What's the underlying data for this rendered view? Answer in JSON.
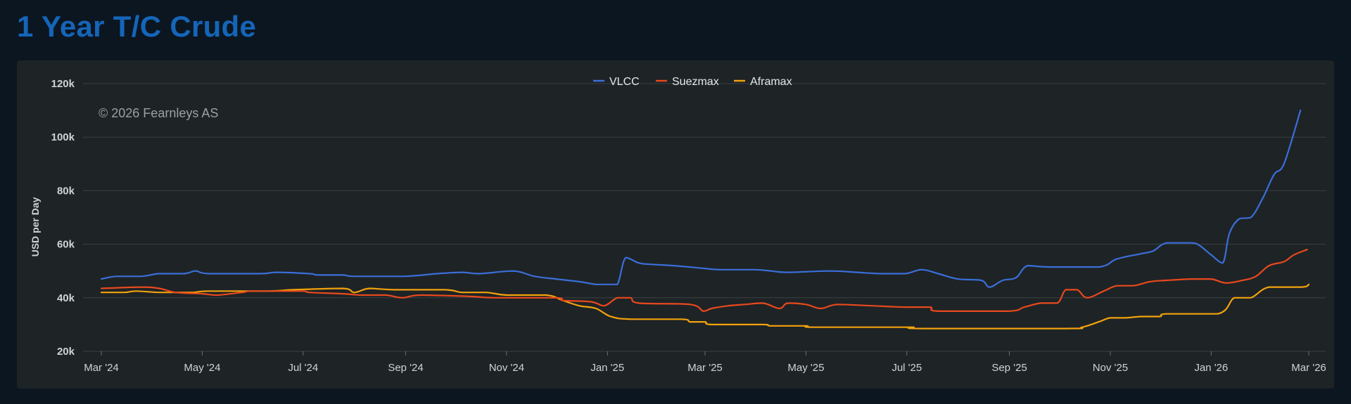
{
  "page": {
    "title": "1 Year T/C Crude"
  },
  "colors": {
    "VLCC": "#3a6fd8",
    "Suezmax": "#e8491d",
    "Aframax": "#f2a20c",
    "grid": "#3a3f43",
    "background": "#1e2326"
  },
  "chart_data": {
    "type": "line",
    "title": "",
    "xlabel": "",
    "ylabel": "USD per Day",
    "watermark": "© 2026 Fearnleys AS",
    "legend_position": "top-center",
    "grid": true,
    "ylim": [
      20000,
      120000
    ],
    "xlim": [
      "2024-03-01",
      "2026-03-01"
    ],
    "x_ticks": [
      {
        "date": "2024-03-01",
        "label": "Mar '24"
      },
      {
        "date": "2024-05-01",
        "label": "May '24"
      },
      {
        "date": "2024-07-01",
        "label": "Jul '24"
      },
      {
        "date": "2024-09-01",
        "label": "Sep '24"
      },
      {
        "date": "2024-11-01",
        "label": "Nov '24"
      },
      {
        "date": "2025-01-01",
        "label": "Jan '25"
      },
      {
        "date": "2025-03-01",
        "label": "Mar '25"
      },
      {
        "date": "2025-05-01",
        "label": "May '25"
      },
      {
        "date": "2025-07-01",
        "label": "Jul '25"
      },
      {
        "date": "2025-09-01",
        "label": "Sep '25"
      },
      {
        "date": "2025-11-01",
        "label": "Nov '25"
      },
      {
        "date": "2026-01-01",
        "label": "Jan '26"
      },
      {
        "date": "2026-03-01",
        "label": "Mar '26"
      }
    ],
    "y_ticks": [
      {
        "value": 20000,
        "label": "20k"
      },
      {
        "value": 40000,
        "label": "40k"
      },
      {
        "value": 60000,
        "label": "60k"
      },
      {
        "value": 80000,
        "label": "80k"
      },
      {
        "value": 100000,
        "label": "100k"
      },
      {
        "value": 120000,
        "label": "120k"
      }
    ],
    "series": [
      {
        "name": "VLCC",
        "points": [
          [
            "2024-03-01",
            47000
          ],
          [
            "2024-03-10",
            48000
          ],
          [
            "2024-03-25",
            48000
          ],
          [
            "2024-04-05",
            49000
          ],
          [
            "2024-04-20",
            49000
          ],
          [
            "2024-04-27",
            50000
          ],
          [
            "2024-05-05",
            49000
          ],
          [
            "2024-06-05",
            49000
          ],
          [
            "2024-06-15",
            49500
          ],
          [
            "2024-07-05",
            49000
          ],
          [
            "2024-07-10",
            48500
          ],
          [
            "2024-07-25",
            48500
          ],
          [
            "2024-08-01",
            48000
          ],
          [
            "2024-08-31",
            48000
          ],
          [
            "2024-09-20",
            49000
          ],
          [
            "2024-10-05",
            49500
          ],
          [
            "2024-10-15",
            49000
          ],
          [
            "2024-11-05",
            50000
          ],
          [
            "2024-11-18",
            48000
          ],
          [
            "2024-12-01",
            47000
          ],
          [
            "2024-12-15",
            46000
          ],
          [
            "2024-12-25",
            45000
          ],
          [
            "2025-01-01",
            45000
          ],
          [
            "2025-01-07",
            45000
          ],
          [
            "2025-01-12",
            55000
          ],
          [
            "2025-01-20",
            53000
          ],
          [
            "2025-01-27",
            52500
          ],
          [
            "2025-02-10",
            52000
          ],
          [
            "2025-02-28",
            51000
          ],
          [
            "2025-03-10",
            50500
          ],
          [
            "2025-03-31",
            50500
          ],
          [
            "2025-04-10",
            50000
          ],
          [
            "2025-04-20",
            49500
          ],
          [
            "2025-05-15",
            50000
          ],
          [
            "2025-06-01",
            49500
          ],
          [
            "2025-06-15",
            49000
          ],
          [
            "2025-06-30",
            49000
          ],
          [
            "2025-07-10",
            50500
          ],
          [
            "2025-07-20",
            49000
          ],
          [
            "2025-08-01",
            47000
          ],
          [
            "2025-08-15",
            46500
          ],
          [
            "2025-08-20",
            44000
          ],
          [
            "2025-08-28",
            46500
          ],
          [
            "2025-09-05",
            47500
          ],
          [
            "2025-09-12",
            52000
          ],
          [
            "2025-09-25",
            51500
          ],
          [
            "2025-10-25",
            51500
          ],
          [
            "2025-11-05",
            54500
          ],
          [
            "2025-11-20",
            56500
          ],
          [
            "2025-11-27",
            57500
          ],
          [
            "2025-12-05",
            60500
          ],
          [
            "2025-12-20",
            60500
          ],
          [
            "2025-12-25",
            59500
          ],
          [
            "2026-01-01",
            56000
          ],
          [
            "2026-01-08",
            53000
          ],
          [
            "2026-01-12",
            64000
          ],
          [
            "2026-01-18",
            69500
          ],
          [
            "2026-01-25",
            70000
          ],
          [
            "2026-02-01",
            77000
          ],
          [
            "2026-02-08",
            86000
          ],
          [
            "2026-02-14",
            90000
          ],
          [
            "2026-02-24",
            110000
          ]
        ]
      },
      {
        "name": "Suezmax",
        "points": [
          [
            "2024-03-01",
            43500
          ],
          [
            "2024-03-25",
            44000
          ],
          [
            "2024-04-05",
            43500
          ],
          [
            "2024-04-15",
            42000
          ],
          [
            "2024-05-01",
            41500
          ],
          [
            "2024-05-10",
            41000
          ],
          [
            "2024-05-25",
            42000
          ],
          [
            "2024-06-01",
            42500
          ],
          [
            "2024-06-30",
            42500
          ],
          [
            "2024-07-05",
            42000
          ],
          [
            "2024-07-25",
            41500
          ],
          [
            "2024-08-05",
            41000
          ],
          [
            "2024-08-20",
            41000
          ],
          [
            "2024-08-30",
            40000
          ],
          [
            "2024-09-10",
            41000
          ],
          [
            "2024-10-10",
            40500
          ],
          [
            "2024-10-25",
            40000
          ],
          [
            "2024-12-01",
            40000
          ],
          [
            "2024-12-05",
            39000
          ],
          [
            "2024-12-22",
            38500
          ],
          [
            "2024-12-30",
            37000
          ],
          [
            "2025-01-07",
            40000
          ],
          [
            "2025-01-15",
            40000
          ],
          [
            "2025-01-20",
            38000
          ],
          [
            "2025-02-20",
            37500
          ],
          [
            "2025-02-28",
            35000
          ],
          [
            "2025-03-05",
            36000
          ],
          [
            "2025-03-15",
            37000
          ],
          [
            "2025-03-25",
            37500
          ],
          [
            "2025-04-05",
            38000
          ],
          [
            "2025-04-15",
            36000
          ],
          [
            "2025-04-20",
            38000
          ],
          [
            "2025-05-01",
            37500
          ],
          [
            "2025-05-10",
            36000
          ],
          [
            "2025-05-20",
            37500
          ],
          [
            "2025-06-10",
            37000
          ],
          [
            "2025-06-30",
            36500
          ],
          [
            "2025-07-15",
            36500
          ],
          [
            "2025-07-20",
            35000
          ],
          [
            "2025-08-31",
            35000
          ],
          [
            "2025-09-10",
            36500
          ],
          [
            "2025-09-20",
            38000
          ],
          [
            "2025-09-30",
            38000
          ],
          [
            "2025-10-05",
            43000
          ],
          [
            "2025-10-12",
            43000
          ],
          [
            "2025-10-18",
            40000
          ],
          [
            "2025-10-28",
            42500
          ],
          [
            "2025-11-05",
            44500
          ],
          [
            "2025-11-15",
            44500
          ],
          [
            "2025-11-25",
            46000
          ],
          [
            "2025-12-05",
            46500
          ],
          [
            "2025-12-20",
            47000
          ],
          [
            "2026-01-01",
            47000
          ],
          [
            "2026-01-10",
            45500
          ],
          [
            "2026-01-20",
            46500
          ],
          [
            "2026-01-28",
            48000
          ],
          [
            "2026-02-05",
            52000
          ],
          [
            "2026-02-14",
            53500
          ],
          [
            "2026-02-20",
            56000
          ],
          [
            "2026-02-28",
            58000
          ]
        ]
      },
      {
        "name": "Aframax",
        "points": [
          [
            "2024-03-01",
            42000
          ],
          [
            "2024-03-15",
            42000
          ],
          [
            "2024-03-22",
            42500
          ],
          [
            "2024-04-05",
            42000
          ],
          [
            "2024-04-25",
            42000
          ],
          [
            "2024-05-05",
            42500
          ],
          [
            "2024-06-10",
            42500
          ],
          [
            "2024-06-25",
            43000
          ],
          [
            "2024-07-25",
            43500
          ],
          [
            "2024-08-01",
            42000
          ],
          [
            "2024-08-10",
            43500
          ],
          [
            "2024-08-25",
            43000
          ],
          [
            "2024-09-25",
            43000
          ],
          [
            "2024-10-05",
            42000
          ],
          [
            "2024-10-20",
            42000
          ],
          [
            "2024-11-01",
            41000
          ],
          [
            "2024-11-25",
            41000
          ],
          [
            "2024-12-05",
            39000
          ],
          [
            "2024-12-15",
            37000
          ],
          [
            "2024-12-25",
            36000
          ],
          [
            "2025-01-03",
            33000
          ],
          [
            "2025-01-15",
            32000
          ],
          [
            "2025-02-15",
            32000
          ],
          [
            "2025-02-20",
            31000
          ],
          [
            "2025-03-01",
            31000
          ],
          [
            "2025-03-05",
            30000
          ],
          [
            "2025-04-05",
            30000
          ],
          [
            "2025-04-10",
            29500
          ],
          [
            "2025-05-01",
            29500
          ],
          [
            "2025-05-05",
            29000
          ],
          [
            "2025-06-25",
            29000
          ],
          [
            "2025-07-05",
            29000
          ],
          [
            "2025-07-10",
            28500
          ],
          [
            "2025-10-05",
            28500
          ],
          [
            "2025-10-15",
            29000
          ],
          [
            "2025-10-25",
            31000
          ],
          [
            "2025-11-01",
            32500
          ],
          [
            "2025-11-10",
            32500
          ],
          [
            "2025-11-20",
            33000
          ],
          [
            "2025-12-01",
            33000
          ],
          [
            "2025-12-05",
            34000
          ],
          [
            "2026-01-05",
            34000
          ],
          [
            "2026-01-15",
            40000
          ],
          [
            "2026-01-25",
            40000
          ],
          [
            "2026-02-05",
            44000
          ],
          [
            "2026-02-25",
            44000
          ],
          [
            "2026-03-01",
            45000
          ]
        ]
      }
    ]
  }
}
